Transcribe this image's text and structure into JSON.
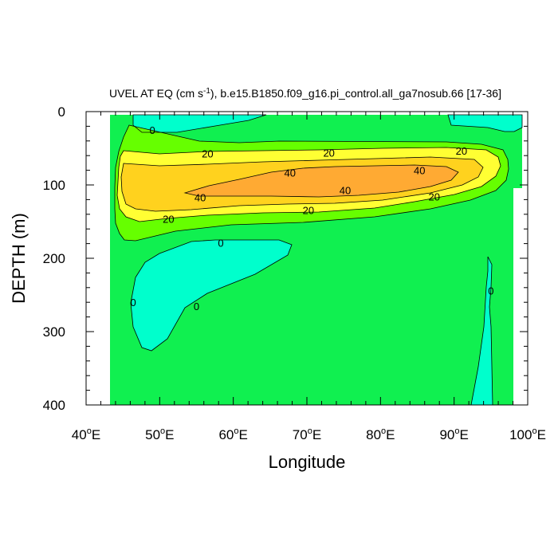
{
  "chart_data": {
    "type": "contour",
    "title": {
      "prefix": "UVEL AT EQ (cm s",
      "superscript": "-1",
      "suffix": "), b.e15.B1850.f09_g16.pi_control.all_ga7nosub.66 [17-36]"
    },
    "xlabel": "Longitude",
    "ylabel": "DEPTH (m)",
    "xlim": [
      40,
      100
    ],
    "ylim": [
      400,
      0
    ],
    "x_ticks": [
      {
        "value": 40,
        "num": "40",
        "deg": "o",
        "hemi": "E"
      },
      {
        "value": 50,
        "num": "50",
        "deg": "o",
        "hemi": "E"
      },
      {
        "value": 60,
        "num": "60",
        "deg": "o",
        "hemi": "E"
      },
      {
        "value": 70,
        "num": "70",
        "deg": "o",
        "hemi": "E"
      },
      {
        "value": 80,
        "num": "80",
        "deg": "o",
        "hemi": "E"
      },
      {
        "value": 90,
        "num": "90",
        "deg": "o",
        "hemi": "E"
      },
      {
        "value": 100,
        "num": "100",
        "deg": "o",
        "hemi": "E"
      }
    ],
    "y_ticks": [
      {
        "value": 0,
        "label": "0"
      },
      {
        "value": 100,
        "label": "100"
      },
      {
        "value": 200,
        "label": "200"
      },
      {
        "value": 300,
        "label": "300"
      },
      {
        "value": 400,
        "label": "400"
      }
    ],
    "levels": [
      0,
      10,
      20,
      30,
      40
    ],
    "colors": {
      "background_field": "#10f050",
      "negative": "#00ffcc",
      "band_10": "#66ff00",
      "band_20": "#ffff33",
      "band_30": "#ffd21e",
      "band_40": "#ffaa33",
      "line": "#000000"
    },
    "contour_labels": [
      {
        "text": "0",
        "lon": 49.0,
        "depth": 25
      },
      {
        "text": "20",
        "lon": 56.5,
        "depth": 57
      },
      {
        "text": "20",
        "lon": 73.0,
        "depth": 56
      },
      {
        "text": "20",
        "lon": 91.0,
        "depth": 53
      },
      {
        "text": "40",
        "lon": 67.7,
        "depth": 83
      },
      {
        "text": "40",
        "lon": 85.3,
        "depth": 80
      },
      {
        "text": "40",
        "lon": 55.5,
        "depth": 117
      },
      {
        "text": "40",
        "lon": 75.2,
        "depth": 107
      },
      {
        "text": "20",
        "lon": 87.3,
        "depth": 116
      },
      {
        "text": "20",
        "lon": 70.2,
        "depth": 134
      },
      {
        "text": "20",
        "lon": 51.2,
        "depth": 146
      },
      {
        "text": "0",
        "lon": 58.3,
        "depth": 179
      },
      {
        "text": "0",
        "lon": 46.4,
        "depth": 260
      },
      {
        "text": "0",
        "lon": 55.0,
        "depth": 265
      },
      {
        "text": "0",
        "lon": 95.0,
        "depth": 244
      }
    ]
  }
}
